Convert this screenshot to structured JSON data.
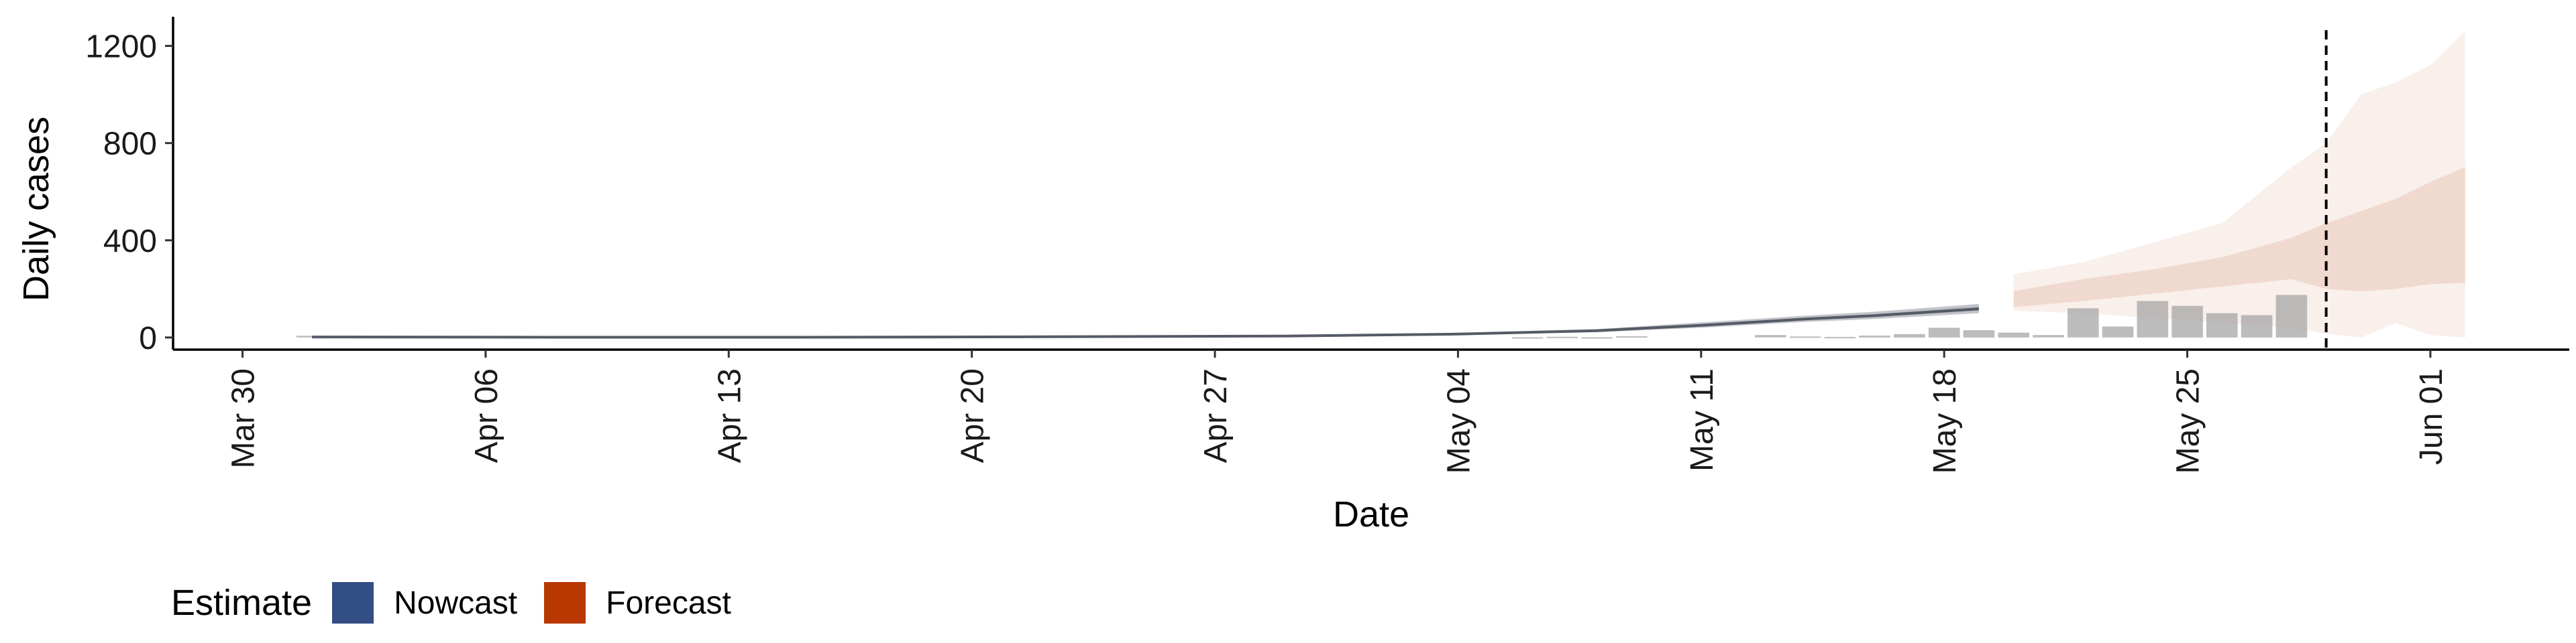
{
  "chart_data": {
    "type": "area",
    "xlabel": "Date",
    "ylabel": "Daily cases",
    "ylim": [
      -50,
      1320
    ],
    "yticks": [
      0,
      400,
      800,
      1200
    ],
    "x_ticks": [
      {
        "date": "2020-03-30",
        "label": "Mar 30"
      },
      {
        "date": "2020-04-06",
        "label": "Apr 06"
      },
      {
        "date": "2020-04-13",
        "label": "Apr 13"
      },
      {
        "date": "2020-04-20",
        "label": "Apr 20"
      },
      {
        "date": "2020-04-27",
        "label": "Apr 27"
      },
      {
        "date": "2020-05-04",
        "label": "May 04"
      },
      {
        "date": "2020-05-11",
        "label": "May 11"
      },
      {
        "date": "2020-05-18",
        "label": "May 18"
      },
      {
        "date": "2020-05-25",
        "label": "May 25"
      },
      {
        "date": "2020-06-01",
        "label": "Jun 01"
      }
    ],
    "xlim": [
      "2020-03-28",
      "2020-06-05"
    ],
    "grid": false,
    "reference_line_date": "2020-05-29",
    "reported_cases": [
      {
        "date": "2020-04-01",
        "value": 7
      },
      {
        "date": "2020-04-02",
        "value": 3
      },
      {
        "date": "2020-05-06",
        "value": 1
      },
      {
        "date": "2020-05-07",
        "value": 3
      },
      {
        "date": "2020-05-08",
        "value": 1
      },
      {
        "date": "2020-05-09",
        "value": 5
      },
      {
        "date": "2020-05-13",
        "value": 10
      },
      {
        "date": "2020-05-14",
        "value": 4
      },
      {
        "date": "2020-05-15",
        "value": 2
      },
      {
        "date": "2020-05-16",
        "value": 8
      },
      {
        "date": "2020-05-17",
        "value": 14
      },
      {
        "date": "2020-05-18",
        "value": 40
      },
      {
        "date": "2020-05-19",
        "value": 30
      },
      {
        "date": "2020-05-20",
        "value": 20
      },
      {
        "date": "2020-05-21",
        "value": 10
      },
      {
        "date": "2020-05-22",
        "value": 120
      },
      {
        "date": "2020-05-23",
        "value": 45
      },
      {
        "date": "2020-05-24",
        "value": 150
      },
      {
        "date": "2020-05-25",
        "value": 130
      },
      {
        "date": "2020-05-26",
        "value": 100
      },
      {
        "date": "2020-05-27",
        "value": 92
      },
      {
        "date": "2020-05-28",
        "value": 175
      }
    ],
    "estimate_series": [
      {
        "name": "Nowcast",
        "color": "#334d85",
        "x": [
          "2020-04-01",
          "2020-04-08",
          "2020-04-15",
          "2020-04-22",
          "2020-04-29",
          "2020-05-04",
          "2020-05-08",
          "2020-05-11",
          "2020-05-14",
          "2020-05-16",
          "2020-05-19"
        ],
        "median": [
          2,
          1,
          1,
          3,
          6,
          14,
          28,
          50,
          76,
          90,
          118
        ],
        "lower_50": [
          1,
          0,
          0,
          2,
          5,
          12,
          25,
          45,
          70,
          84,
          110
        ],
        "upper_50": [
          3,
          1,
          2,
          4,
          8,
          16,
          31,
          55,
          82,
          97,
          128
        ],
        "lower_90": [
          0,
          0,
          0,
          1,
          4,
          10,
          22,
          40,
          64,
          76,
          100
        ],
        "upper_90": [
          4,
          2,
          3,
          5,
          10,
          19,
          35,
          62,
          90,
          106,
          138
        ]
      },
      {
        "name": "Forecast",
        "color": "#b83800",
        "x": [
          "2020-05-20",
          "2020-05-22",
          "2020-05-24",
          "2020-05-26",
          "2020-05-28",
          "2020-05-29",
          "2020-05-30",
          "2020-05-31",
          "2020-06-01",
          "2020-06-02"
        ],
        "lower_50": [
          125,
          150,
          180,
          210,
          240,
          200,
          190,
          200,
          220,
          225
        ],
        "upper_50": [
          190,
          240,
          280,
          330,
          410,
          470,
          520,
          570,
          640,
          700
        ],
        "lower_90": [
          110,
          100,
          80,
          60,
          40,
          15,
          0,
          60,
          10,
          0
        ],
        "upper_90": [
          260,
          310,
          390,
          470,
          700,
          800,
          1000,
          1050,
          1120,
          1260
        ]
      }
    ],
    "legend": {
      "title": "Estimate",
      "placement": "bottom",
      "items": [
        {
          "label": "Nowcast",
          "color": "#334d85"
        },
        {
          "label": "Forecast",
          "color": "#b83800"
        }
      ]
    }
  }
}
